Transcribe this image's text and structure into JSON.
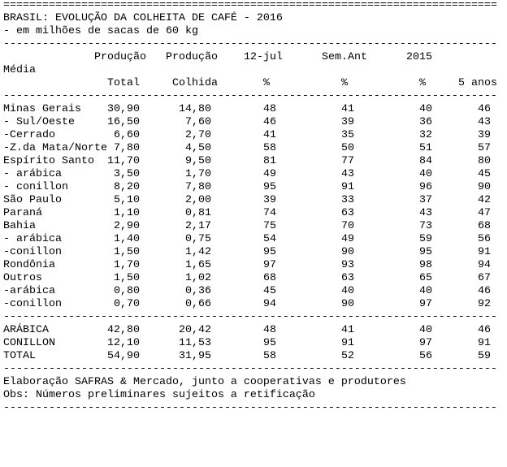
{
  "separators": {
    "double": "============================================================================",
    "single": "----------------------------------------------------------------------------"
  },
  "header": {
    "title": "BRASIL: EVOLUÇÃO DA COLHEITA DE CAFÉ - 2016",
    "subtitle": "- em milhões de sacas de 60 kg"
  },
  "columns": {
    "row1": {
      "producao_total": "Produção",
      "producao_colhida": "Produção",
      "jul12": "12-jul",
      "sem_ant": "Sem.Ant",
      "y2015": "2015"
    },
    "media_label": "Média",
    "row2": {
      "total": "Total",
      "colhida": "Colhida",
      "jul12_pct": "%",
      "sem_ant_pct": "%",
      "y2015_pct": "%",
      "cinco_anos": "5 anos"
    }
  },
  "rows": [
    {
      "label": "Minas Gerais",
      "total": "30,90",
      "colhida": "14,80",
      "jul12": "48",
      "sem_ant": "41",
      "y2015": "40",
      "media5": "46"
    },
    {
      "label": "- Sul/Oeste",
      "total": "16,50",
      "colhida": "7,60",
      "jul12": "46",
      "sem_ant": "39",
      "y2015": "36",
      "media5": "43"
    },
    {
      "label": "-Cerrado",
      "total": "6,60",
      "colhida": "2,70",
      "jul12": "41",
      "sem_ant": "35",
      "y2015": "32",
      "media5": "39"
    },
    {
      "label": "-Z.da Mata/Norte",
      "total": "7,80",
      "colhida": "4,50",
      "jul12": "58",
      "sem_ant": "50",
      "y2015": "51",
      "media5": "57"
    },
    {
      "label": "Espírito Santo",
      "total": "11,70",
      "colhida": "9,50",
      "jul12": "81",
      "sem_ant": "77",
      "y2015": "84",
      "media5": "80"
    },
    {
      "label": "- arábica",
      "total": "3,50",
      "colhida": "1,70",
      "jul12": "49",
      "sem_ant": "43",
      "y2015": "40",
      "media5": "45"
    },
    {
      "label": "- conillon",
      "total": "8,20",
      "colhida": "7,80",
      "jul12": "95",
      "sem_ant": "91",
      "y2015": "96",
      "media5": "90"
    },
    {
      "label": "São Paulo",
      "total": "5,10",
      "colhida": "2,00",
      "jul12": "39",
      "sem_ant": "33",
      "y2015": "37",
      "media5": "42"
    },
    {
      "label": "Paraná",
      "total": "1,10",
      "colhida": "0,81",
      "jul12": "74",
      "sem_ant": "63",
      "y2015": "43",
      "media5": "47"
    },
    {
      "label": "Bahia",
      "total": "2,90",
      "colhida": "2,17",
      "jul12": "75",
      "sem_ant": "70",
      "y2015": "73",
      "media5": "68"
    },
    {
      "label": "- arábica",
      "total": "1,40",
      "colhida": "0,75",
      "jul12": "54",
      "sem_ant": "49",
      "y2015": "59",
      "media5": "56"
    },
    {
      "label": "-conillon",
      "total": "1,50",
      "colhida": "1,42",
      "jul12": "95",
      "sem_ant": "90",
      "y2015": "95",
      "media5": "91"
    },
    {
      "label": "Rondônia",
      "total": "1,70",
      "colhida": "1,65",
      "jul12": "97",
      "sem_ant": "93",
      "y2015": "98",
      "media5": "94"
    },
    {
      "label": "Outros",
      "total": "1,50",
      "colhida": "1,02",
      "jul12": "68",
      "sem_ant": "63",
      "y2015": "65",
      "media5": "67"
    },
    {
      "label": "-arábica",
      "total": "0,80",
      "colhida": "0,36",
      "jul12": "45",
      "sem_ant": "40",
      "y2015": "40",
      "media5": "46"
    },
    {
      "label": "-conillon",
      "total": "0,70",
      "colhida": "0,66",
      "jul12": "94",
      "sem_ant": "90",
      "y2015": "97",
      "media5": "92"
    }
  ],
  "totals": [
    {
      "label": "ARÁBICA",
      "total": "42,80",
      "colhida": "20,42",
      "jul12": "48",
      "sem_ant": "41",
      "y2015": "40",
      "media5": "46"
    },
    {
      "label": "CONILLON",
      "total": "12,10",
      "colhida": "11,53",
      "jul12": "95",
      "sem_ant": "91",
      "y2015": "97",
      "media5": "91"
    },
    {
      "label": "TOTAL",
      "total": "54,90",
      "colhida": "31,95",
      "jul12": "58",
      "sem_ant": "52",
      "y2015": "56",
      "media5": "59"
    }
  ],
  "footer": {
    "source": "Elaboração SAFRAS & Mercado, junto a cooperativas e produtores",
    "note": "Obs: Números preliminares sujeitos a retificação"
  }
}
